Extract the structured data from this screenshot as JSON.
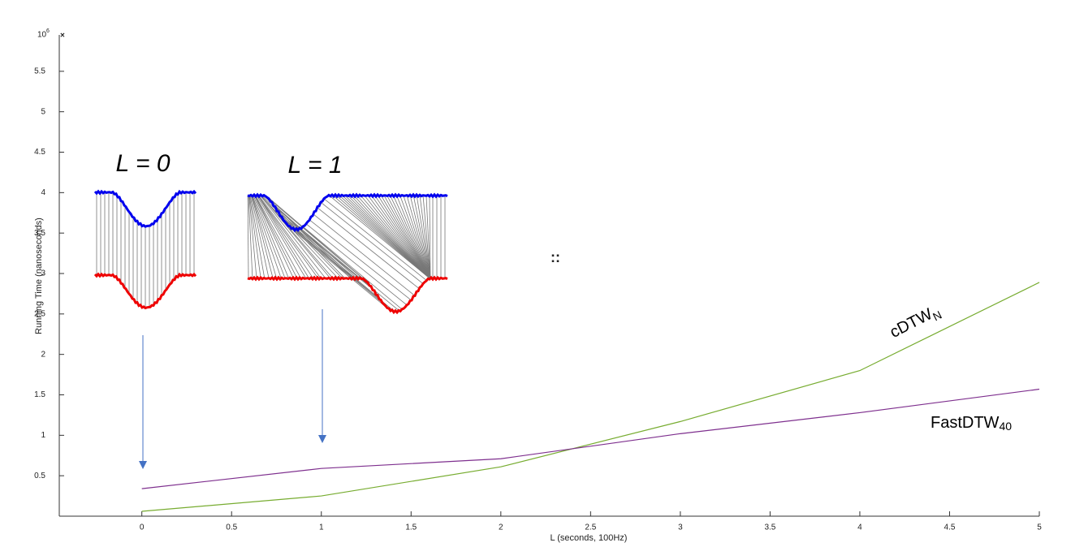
{
  "chart_data": {
    "type": "line",
    "y_multiplier": {
      "base": "10",
      "exponent": "6",
      "mark": "×"
    },
    "x_label": "L (seconds, 100Hz)",
    "y_label": "Running Time (nanoseconds)",
    "x": [
      0,
      1,
      2,
      3,
      4,
      5
    ],
    "series": [
      {
        "name": "cDTW",
        "name_subscript": "N",
        "color": "#77ac30",
        "values": [
          0.06,
          0.25,
          0.61,
          1.17,
          1.8,
          2.89
        ]
      },
      {
        "name": "FastDTW",
        "name_subscript": "40",
        "color": "#7e2f8e",
        "values": [
          0.34,
          0.59,
          0.71,
          1.02,
          1.28,
          1.57
        ]
      }
    ],
    "xlim": [
      -0.46,
      5
    ],
    "xticks": [
      0,
      0.5,
      1,
      1.5,
      2,
      2.5,
      3,
      3.5,
      4,
      4.5,
      5
    ],
    "ylim": [
      0,
      5.95
    ],
    "yticks": [
      0.5,
      1,
      1.5,
      2,
      2.5,
      3,
      3.5,
      4,
      4.5,
      5,
      5.5
    ],
    "annotations": [
      "L = 0",
      "L = 1",
      "::"
    ]
  }
}
